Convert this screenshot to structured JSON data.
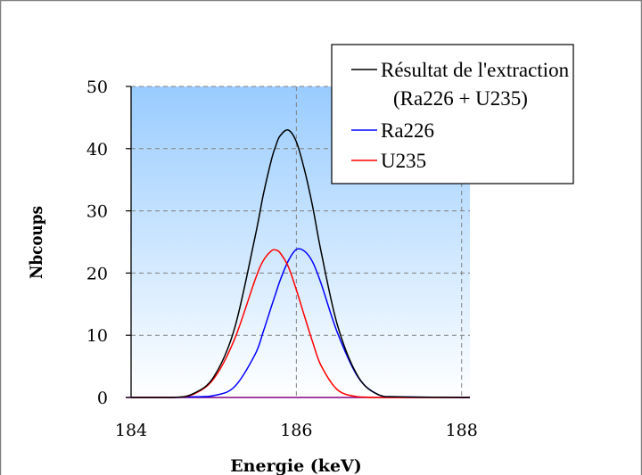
{
  "colors": {
    "plot_bg_top": "#99CCFF",
    "plot_bg_bottom": "#FFFFFF",
    "frame": "#808080",
    "baseline": "#800080"
  },
  "chart_data": {
    "type": "line",
    "title": "",
    "xlabel": "Energie (keV)",
    "ylabel": "Nbcoups",
    "xlim": [
      184.0,
      188.1
    ],
    "ylim": [
      0,
      50
    ],
    "x_ticks": [
      184,
      186,
      188
    ],
    "x_tick_labels": [
      "184",
      "186",
      "188"
    ],
    "y_ticks": [
      0,
      10,
      20,
      30,
      40,
      50
    ],
    "y_tick_labels": [
      "0",
      "10",
      "20",
      "30",
      "40",
      "50"
    ],
    "grid": true,
    "legend_position": "top-right",
    "legend": {
      "line1": "Résultat de l'extraction",
      "line2": "(Ra226 + U235)",
      "ra": "Ra226",
      "u": "U235"
    },
    "x": [
      184.0,
      184.5,
      184.75,
      185.0,
      185.25,
      185.5,
      185.6,
      185.7,
      185.75,
      185.8,
      185.9,
      186.0,
      186.1,
      186.2,
      186.3,
      186.5,
      186.75,
      187.0,
      187.25,
      188.1
    ],
    "series": [
      {
        "name": "Ra226",
        "color": "#0000FF",
        "values": [
          0,
          0,
          0.1,
          0.3,
          1.7,
          6.9,
          10.6,
          14.7,
          16.7,
          18.7,
          21.9,
          23.8,
          23.5,
          21.7,
          18.3,
          10.3,
          3.2,
          0.4,
          0.1,
          0
        ]
      },
      {
        "name": "U235",
        "color": "#FF0000",
        "values": [
          0,
          0,
          0.5,
          3.0,
          9.3,
          18.9,
          22.0,
          23.6,
          23.7,
          23.3,
          21.1,
          17.3,
          13.0,
          8.8,
          5.1,
          1.2,
          0.1,
          0,
          0,
          0
        ]
      },
      {
        "name": "Résultat de l'extraction (Ra226 + U235)",
        "color": "#000000",
        "values": [
          0,
          0,
          0.6,
          3.3,
          11.0,
          25.8,
          32.6,
          38.3,
          40.4,
          42.0,
          43.0,
          41.1,
          36.5,
          30.5,
          23.4,
          11.5,
          3.3,
          0.4,
          0.1,
          0
        ]
      }
    ]
  }
}
